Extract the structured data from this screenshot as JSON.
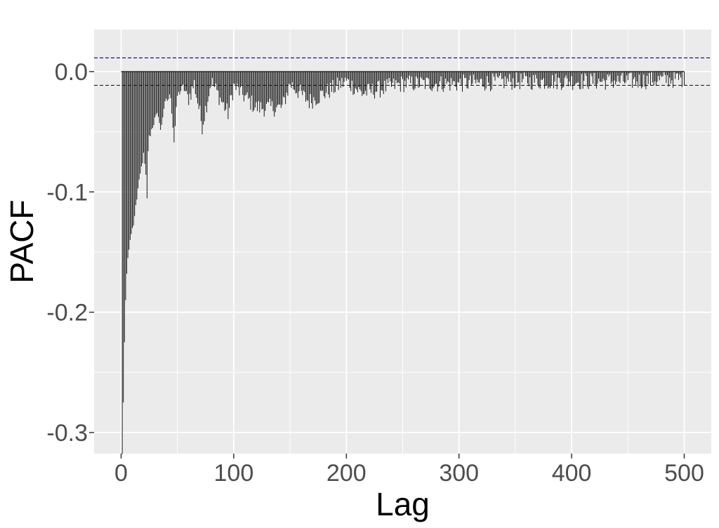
{
  "chart_data": {
    "type": "bar",
    "title": "",
    "xlabel": "Lag",
    "ylabel": "PACF",
    "xlim": [
      -24,
      524
    ],
    "ylim": [
      -0.3175,
      0.035
    ],
    "x_ticks": [
      0,
      100,
      200,
      300,
      400,
      500
    ],
    "x_tick_labels": [
      "0",
      "100",
      "200",
      "300",
      "400",
      "500"
    ],
    "y_ticks": [
      0.0,
      -0.1,
      -0.2,
      -0.3
    ],
    "y_tick_labels": [
      "0.0",
      "-0.1",
      "-0.2",
      "-0.3"
    ],
    "confidence_band": [
      -0.0114,
      0.0114
    ],
    "grid": true,
    "background": "#ebebeb",
    "grid_color": "#ffffff",
    "bar_color": "#000000",
    "band_color": "#00008b",
    "series": [
      {
        "x_start": 1,
        "x_end": 500,
        "anchors": [
          [
            1,
            -0.318
          ],
          [
            2,
            -0.275
          ],
          [
            3,
            -0.225
          ],
          [
            4,
            -0.19
          ],
          [
            5,
            -0.168
          ],
          [
            6,
            -0.155
          ],
          [
            7,
            -0.148
          ],
          [
            8,
            -0.14
          ],
          [
            9,
            -0.135
          ],
          [
            10,
            -0.13
          ],
          [
            11,
            -0.128
          ],
          [
            12,
            -0.12
          ],
          [
            13,
            -0.112
          ],
          [
            14,
            -0.105
          ],
          [
            15,
            -0.098
          ],
          [
            16,
            -0.093
          ],
          [
            17,
            -0.086
          ],
          [
            18,
            -0.08
          ],
          [
            19,
            -0.074
          ],
          [
            20,
            -0.07
          ],
          [
            21,
            -0.078
          ],
          [
            22,
            -0.088
          ],
          [
            23,
            -0.107
          ],
          [
            24,
            -0.065
          ],
          [
            25,
            -0.055
          ],
          [
            28,
            -0.045
          ],
          [
            30,
            -0.04
          ],
          [
            33,
            -0.035
          ],
          [
            35,
            -0.05
          ],
          [
            38,
            -0.03
          ],
          [
            40,
            -0.025
          ],
          [
            44,
            -0.02
          ],
          [
            47,
            -0.058
          ],
          [
            50,
            -0.02
          ],
          [
            55,
            -0.013
          ],
          [
            60,
            -0.022
          ],
          [
            65,
            -0.01
          ],
          [
            72,
            -0.045
          ],
          [
            80,
            -0.008
          ],
          [
            95,
            -0.035
          ],
          [
            100,
            -0.012
          ],
          [
            120,
            -0.03
          ],
          [
            143,
            -0.03
          ],
          [
            150,
            -0.01
          ],
          [
            167,
            -0.025
          ],
          [
            200,
            -0.008
          ],
          [
            214,
            -0.018
          ],
          [
            250,
            -0.01
          ],
          [
            300,
            -0.01
          ],
          [
            350,
            -0.008
          ],
          [
            400,
            -0.008
          ],
          [
            450,
            -0.008
          ],
          [
            500,
            -0.006
          ]
        ],
        "noise_amplitude": 0.0075
      }
    ]
  }
}
